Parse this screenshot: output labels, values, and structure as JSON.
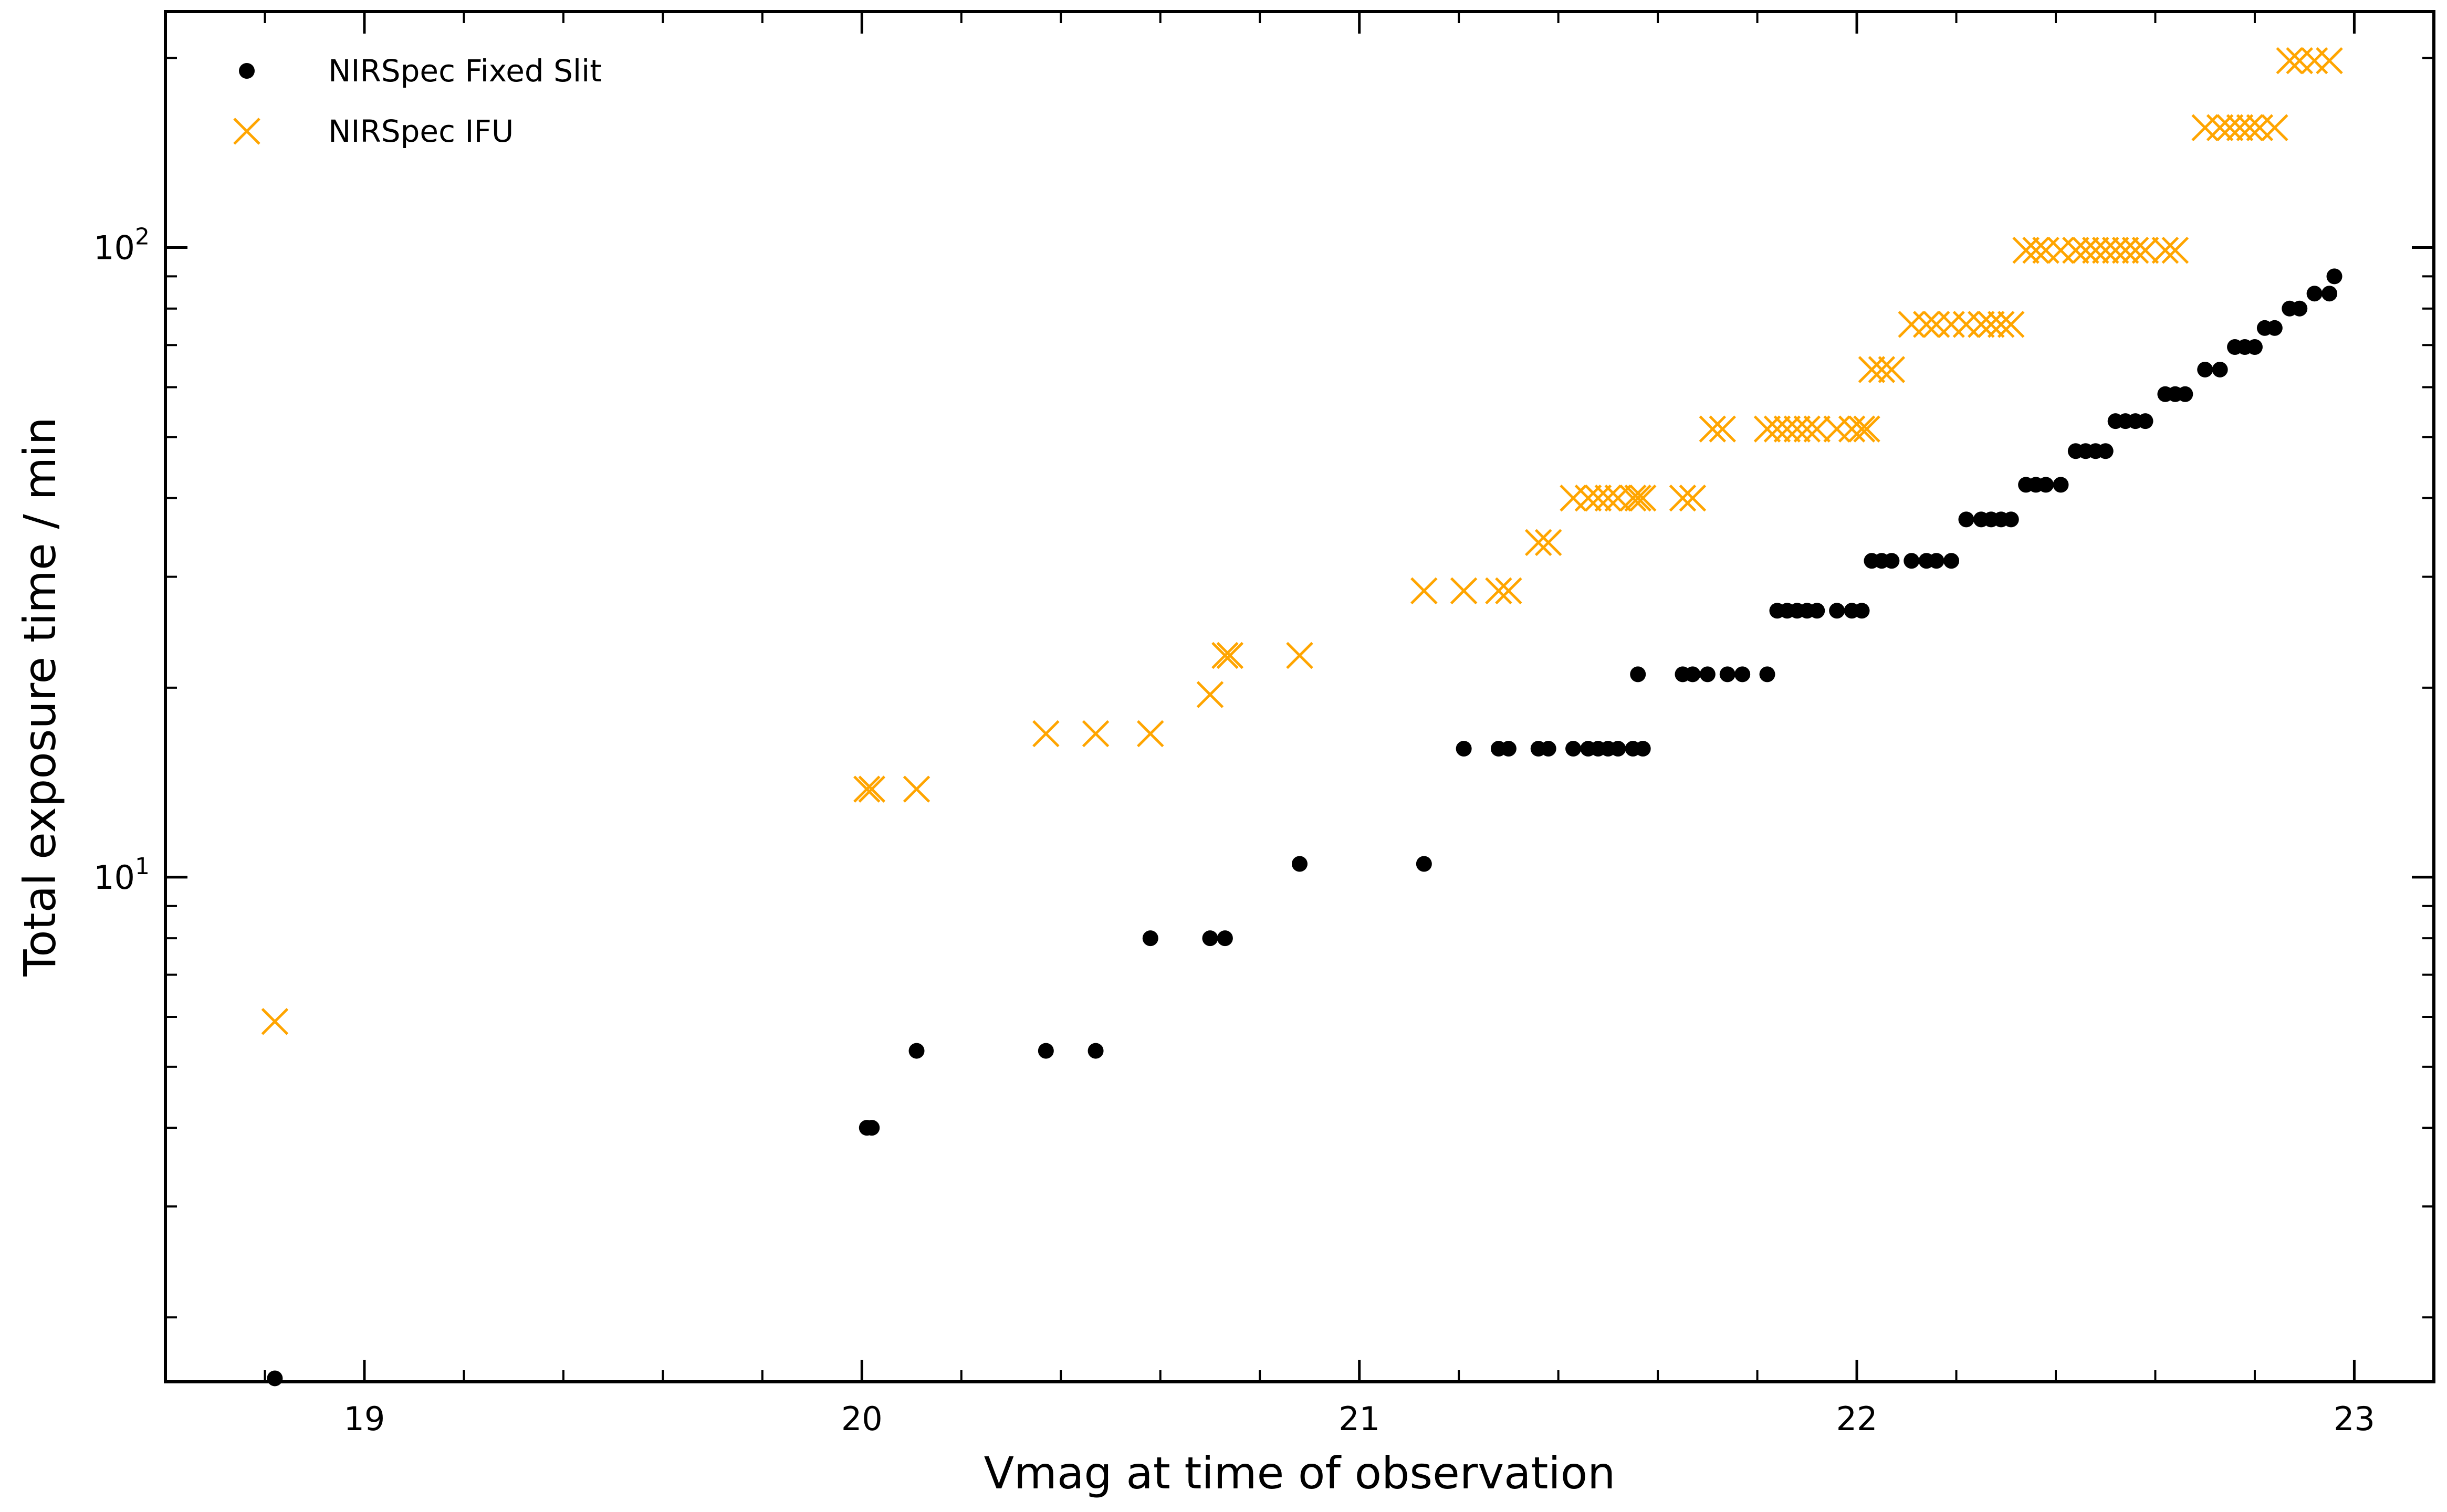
{
  "chart_data": {
    "type": "scatter",
    "title": "",
    "xlabel": "Vmag at time of observation",
    "ylabel": "Total exposure time / min",
    "xlim": [
      18.6,
      23.16
    ],
    "ylim": [
      1.58,
      237
    ],
    "yscale": "log",
    "grid": false,
    "legend_position": "top-left",
    "x_ticks": [
      19,
      20,
      21,
      22,
      23
    ],
    "x_tick_labels": [
      "19",
      "20",
      "21",
      "22",
      "23"
    ],
    "y_ticks": [
      10,
      100
    ],
    "y_tick_labels": [
      "10^1",
      "10^2"
    ],
    "colors": {
      "fixed_slit": "#000000",
      "ifu": "#FFA500",
      "axes": "#000000"
    },
    "series": [
      {
        "name": "NIRSpec Fixed Slit",
        "marker": "circle",
        "x": [
          18.82,
          20.01,
          20.02,
          20.11,
          20.37,
          20.47,
          20.58,
          20.7,
          20.73,
          20.88,
          21.13,
          21.21,
          21.28,
          21.3,
          21.36,
          21.38,
          21.43,
          21.46,
          21.48,
          21.5,
          21.52,
          21.55,
          21.57,
          21.56,
          21.65,
          21.67,
          21.7,
          21.74,
          21.77,
          21.82,
          21.84,
          21.86,
          21.88,
          21.9,
          21.92,
          21.96,
          21.99,
          22.01,
          22.03,
          22.05,
          22.07,
          22.11,
          22.14,
          22.16,
          22.19,
          22.22,
          22.25,
          22.27,
          22.29,
          22.31,
          22.34,
          22.36,
          22.38,
          22.41,
          22.44,
          22.46,
          22.48,
          22.5,
          22.52,
          22.54,
          22.56,
          22.58,
          22.62,
          22.64,
          22.66,
          22.7,
          22.73,
          22.76,
          22.78,
          22.8,
          22.82,
          22.84,
          22.87,
          22.89,
          22.92,
          22.95,
          22.96
        ],
        "y": [
          1.6,
          4.0,
          4.0,
          5.3,
          5.3,
          5.3,
          8.0,
          8.0,
          8.0,
          10.5,
          10.5,
          16.0,
          16.0,
          16.0,
          16.0,
          16.0,
          16.0,
          16.0,
          16.0,
          16.0,
          16.0,
          16.0,
          16.0,
          21.0,
          21.0,
          21.0,
          21.0,
          21.0,
          21.0,
          21.0,
          26.5,
          26.5,
          26.5,
          26.5,
          26.5,
          26.5,
          26.5,
          26.5,
          31.8,
          31.8,
          31.8,
          31.8,
          31.8,
          31.8,
          31.8,
          37.0,
          37.0,
          37.0,
          37.0,
          37.0,
          42.0,
          42.0,
          42.0,
          42.0,
          47.5,
          47.5,
          47.5,
          47.5,
          53.0,
          53.0,
          53.0,
          53.0,
          58.5,
          58.5,
          58.5,
          64.0,
          64.0,
          69.5,
          69.5,
          69.5,
          74.5,
          74.5,
          80.0,
          80.0,
          84.5,
          84.5,
          90.0
        ]
      },
      {
        "name": "NIRSpec IFU",
        "marker": "x",
        "x": [
          18.82,
          20.01,
          20.02,
          20.11,
          20.37,
          20.47,
          20.58,
          20.7,
          20.73,
          20.74,
          20.88,
          21.13,
          21.21,
          21.28,
          21.3,
          21.36,
          21.38,
          21.43,
          21.46,
          21.48,
          21.5,
          21.52,
          21.55,
          21.57,
          21.56,
          21.65,
          21.67,
          21.71,
          21.73,
          21.82,
          21.84,
          21.86,
          21.88,
          21.9,
          21.92,
          21.96,
          21.99,
          22.01,
          22.02,
          22.03,
          22.05,
          22.07,
          22.11,
          22.14,
          22.16,
          22.19,
          22.22,
          22.25,
          22.27,
          22.29,
          22.31,
          22.34,
          22.36,
          22.38,
          22.41,
          22.44,
          22.46,
          22.48,
          22.5,
          22.52,
          22.54,
          22.56,
          22.58,
          22.62,
          22.64,
          22.7,
          22.73,
          22.75,
          22.77,
          22.79,
          22.81,
          22.84,
          22.87,
          22.89,
          22.92,
          22.95
        ],
        "y": [
          5.9,
          13.8,
          13.8,
          13.8,
          16.9,
          16.9,
          16.9,
          19.5,
          22.5,
          22.5,
          22.5,
          28.5,
          28.5,
          28.5,
          28.5,
          34.0,
          34.0,
          40.0,
          40.0,
          40.0,
          40.0,
          40.0,
          40.0,
          40.0,
          40.0,
          40.0,
          40.0,
          51.5,
          51.5,
          51.5,
          51.5,
          51.5,
          51.5,
          51.5,
          51.5,
          51.5,
          51.5,
          51.5,
          51.5,
          64.0,
          64.0,
          64.0,
          75.5,
          75.5,
          75.5,
          75.5,
          75.5,
          75.5,
          75.5,
          75.5,
          75.5,
          99.0,
          99.0,
          99.0,
          99.0,
          99.0,
          99.0,
          99.0,
          99.0,
          99.0,
          99.0,
          99.0,
          99.0,
          99.0,
          99.0,
          155.0,
          155.0,
          155.0,
          155.0,
          155.0,
          155.0,
          155.0,
          198.0,
          198.0,
          198.0,
          198.0
        ]
      }
    ]
  }
}
